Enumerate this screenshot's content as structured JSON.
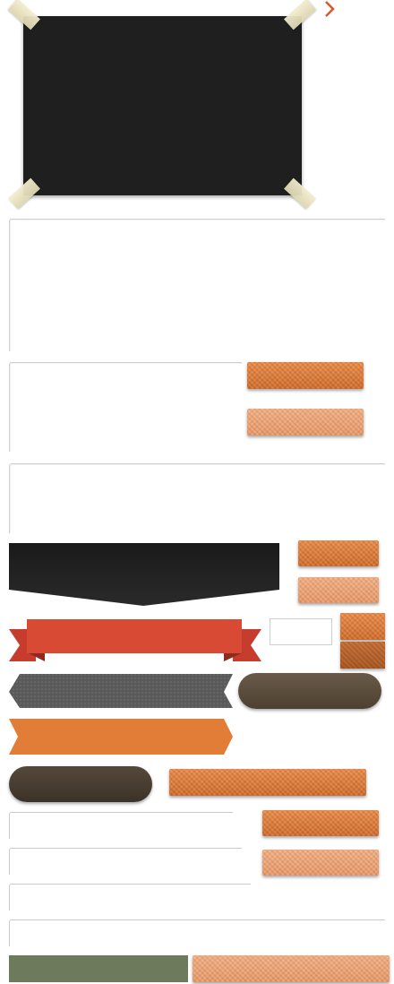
{
  "page": {
    "background": "#ffffff"
  },
  "photo_frame": {
    "color": "#1f1f1f",
    "tape_color": "#ece6c4"
  },
  "next_arrow": {
    "icon": "chevron-right-icon",
    "color": "#d9572c"
  },
  "colors": {
    "orange": "#df7630",
    "orange_light": "#eda06e",
    "orange_dark": "#b9622c",
    "dark_banner": "#222222",
    "red_ribbon": "#d94a35",
    "red_ribbon_fold": "#b23427",
    "gray_arrow": "#5a5a5a",
    "brown_pill": "#5c4e3c",
    "green_bar": "#6d7a5c",
    "border": "#cfcfcf"
  },
  "buttons": {
    "primary_label": "",
    "secondary_label": ""
  }
}
